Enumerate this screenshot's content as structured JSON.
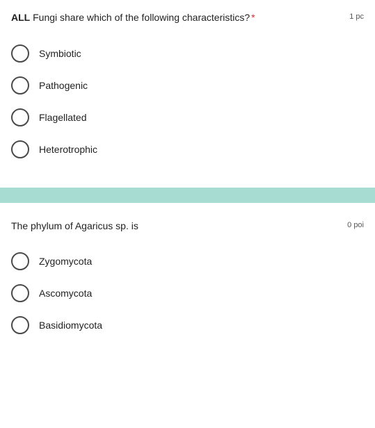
{
  "questions": [
    {
      "prefix_bold": "ALL",
      "text_rest": " Fungi share which of the following characteristics?",
      "required_marker": "*",
      "points_label": "1 pc",
      "options": [
        {
          "label": "Symbiotic"
        },
        {
          "label": "Pathogenic"
        },
        {
          "label": "Flagellated"
        },
        {
          "label": "Heterotrophic"
        }
      ]
    },
    {
      "prefix_bold": "",
      "text_rest": "The phylum of Agaricus sp. is",
      "required_marker": "",
      "points_label": "0 poi",
      "options": [
        {
          "label": "Zygomycota"
        },
        {
          "label": "Ascomycota"
        },
        {
          "label": "Basidiomycota"
        }
      ]
    }
  ],
  "styling": {
    "radio_border_color": "#4a4a4a",
    "divider_color": "#a6dcd1",
    "required_color": "#d93025",
    "text_color": "#222222",
    "points_color": "#555555",
    "background": "#ffffff"
  }
}
